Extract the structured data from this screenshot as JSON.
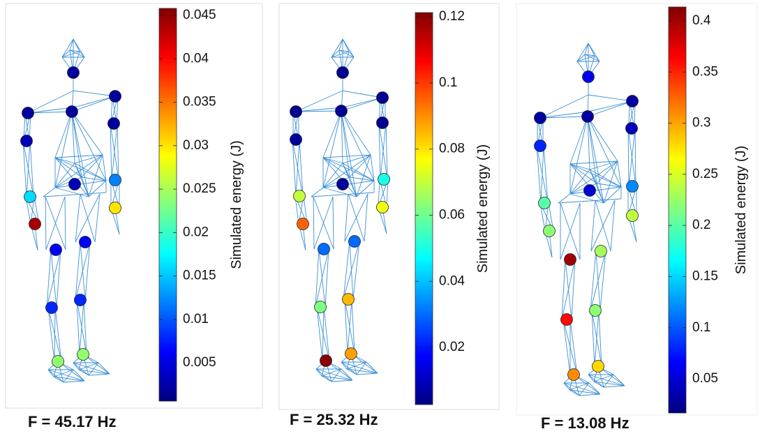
{
  "chart_data": [
    {
      "type": "scatter",
      "colormap": "jet",
      "caption": "F = 45.17 Hz",
      "y_label": "Simulated energy (J)",
      "ylim": [
        0.0006,
        0.0458
      ],
      "yticks": [
        0.005,
        0.01,
        0.015,
        0.02,
        0.025,
        0.03,
        0.035,
        0.04,
        0.045
      ],
      "values": [
        0.002,
        0.002,
        0.002,
        0.002,
        0.003,
        0.002,
        0.003,
        0.016,
        0.012,
        0.044,
        0.03,
        0.006,
        0.006,
        0.008,
        0.008,
        0.024,
        0.024
      ]
    },
    {
      "type": "scatter",
      "colormap": "jet",
      "caption": "F = 25.32 Hz",
      "y_label": "Simulated energy (J)",
      "ylim": [
        0.0027,
        0.1213
      ],
      "yticks": [
        0.02,
        0.04,
        0.06,
        0.08,
        0.1,
        0.12
      ],
      "values": [
        0.005,
        0.005,
        0.005,
        0.005,
        0.006,
        0.005,
        0.006,
        0.07,
        0.05,
        0.095,
        0.075,
        0.03,
        0.03,
        0.062,
        0.085,
        0.12,
        0.088
      ]
    },
    {
      "type": "scatter",
      "colormap": "jet",
      "caption": "F = 13.08 Hz",
      "y_label": "Simulated energy (J)",
      "ylim": [
        0.0166,
        0.4136
      ],
      "yticks": [
        0.05,
        0.1,
        0.15,
        0.2,
        0.25,
        0.3,
        0.35,
        0.4
      ],
      "values": [
        0.06,
        0.03,
        0.03,
        0.03,
        0.08,
        0.04,
        0.05,
        0.2,
        0.12,
        0.22,
        0.24,
        0.4,
        0.23,
        0.36,
        0.22,
        0.31,
        0.28
      ]
    }
  ]
}
